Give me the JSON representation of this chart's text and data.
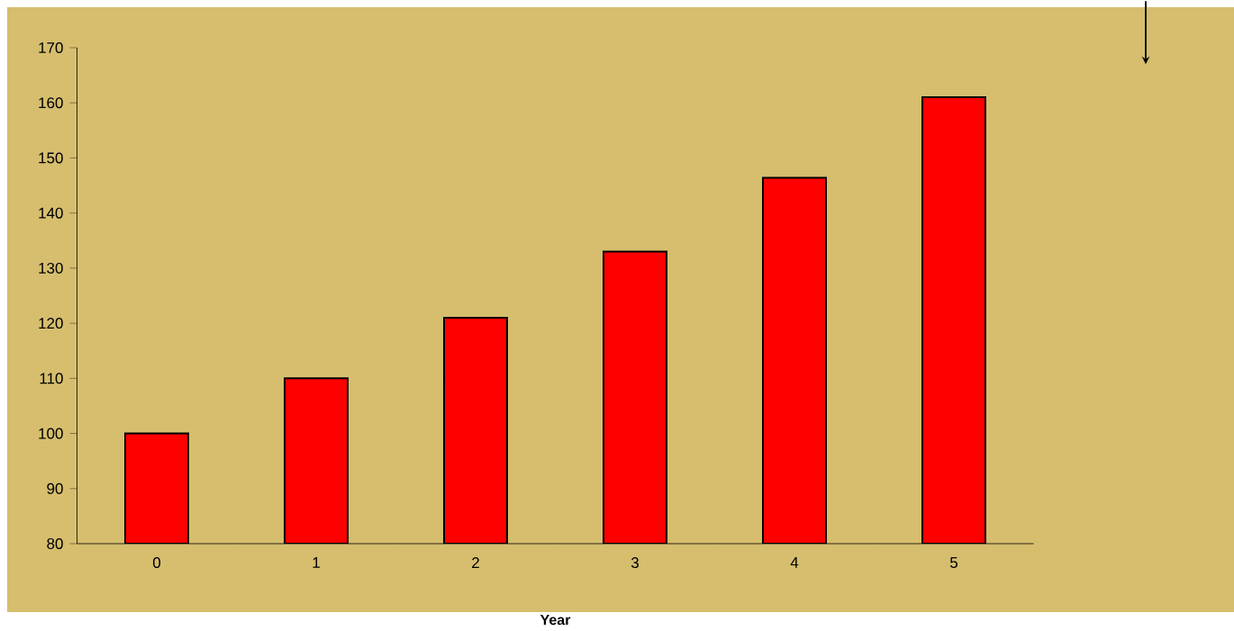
{
  "chart_data": {
    "type": "bar",
    "xlabel": "Year",
    "categories": [
      "0",
      "1",
      "2",
      "3",
      "4",
      "5"
    ],
    "values": [
      100,
      110,
      121,
      133,
      146.4,
      161
    ],
    "color": "#ff0000",
    "ylim": [
      80,
      170
    ],
    "yticks": [
      80,
      90,
      100,
      110,
      120,
      130,
      140,
      150,
      160,
      170
    ]
  }
}
